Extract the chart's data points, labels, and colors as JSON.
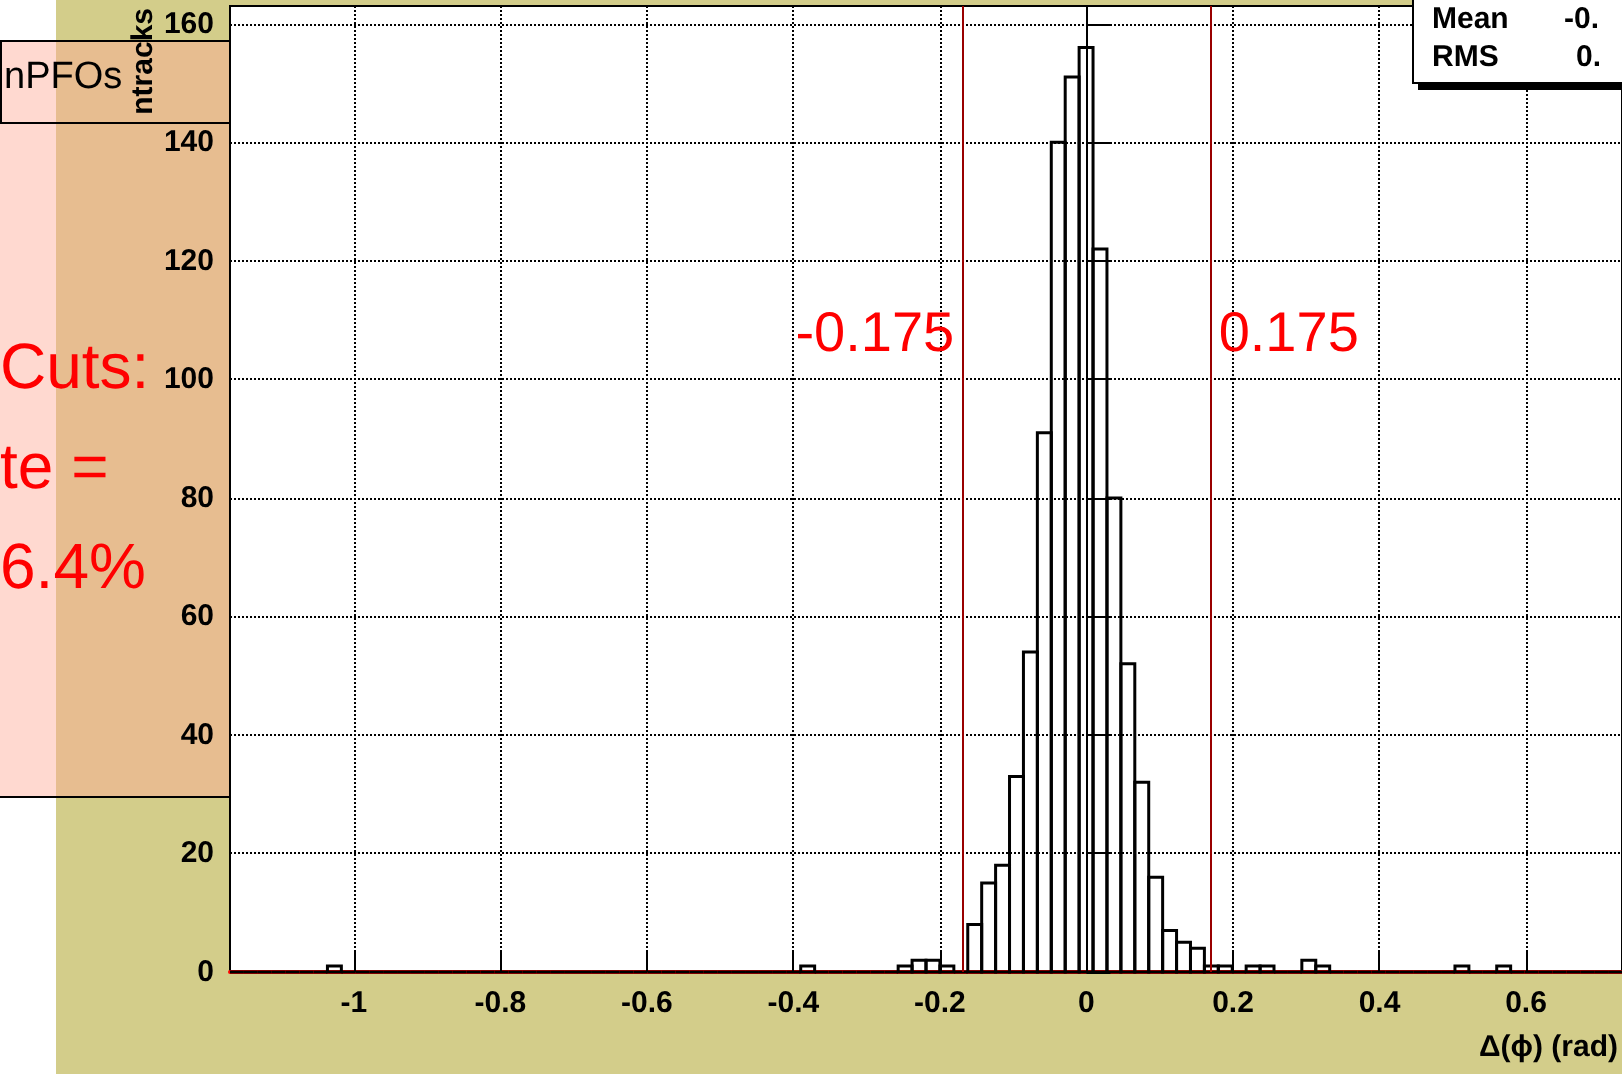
{
  "chart_data": {
    "type": "histogram",
    "xlabel": "Δ(ϕ) (rad)",
    "ylabel": "ntracks",
    "bins": [
      -1.169,
      -1.15,
      -1.131,
      -1.112,
      -1.093,
      -1.074,
      -1.055,
      -1.036,
      -1.017,
      -0.998,
      -0.979,
      -0.96,
      -0.941,
      -0.922,
      -0.903,
      -0.884,
      -0.865,
      -0.846,
      -0.827,
      -0.808,
      -0.789,
      -0.77,
      -0.751,
      -0.732,
      -0.713,
      -0.694,
      -0.675,
      -0.656,
      -0.637,
      -0.618,
      -0.599,
      -0.58,
      -0.561,
      -0.542,
      -0.523,
      -0.504,
      -0.485,
      -0.466,
      -0.447,
      -0.428,
      -0.409,
      -0.39,
      -0.371,
      -0.352,
      -0.333,
      -0.314,
      -0.295,
      -0.276,
      -0.257,
      -0.238,
      -0.219,
      -0.2,
      -0.181,
      -0.162,
      -0.143,
      -0.124,
      -0.105,
      -0.086,
      -0.067,
      -0.048,
      -0.029,
      -0.01,
      0.009,
      0.028,
      0.047,
      0.066,
      0.085,
      0.104,
      0.123,
      0.142,
      0.161,
      0.18,
      0.199,
      0.218,
      0.237,
      0.256,
      0.275,
      0.294,
      0.313,
      0.332,
      0.351,
      0.37,
      0.389,
      0.408,
      0.427,
      0.446,
      0.465,
      0.484,
      0.503,
      0.522,
      0.541,
      0.56,
      0.579,
      0.598,
      0.617,
      0.636,
      0.655,
      0.674,
      0.693,
      0.712,
      0.731
    ],
    "values": [
      0,
      0,
      0,
      0,
      0,
      0,
      0,
      1,
      0,
      0,
      0,
      0,
      0,
      0,
      0,
      0,
      0,
      0,
      0,
      0,
      0,
      0,
      0,
      0,
      0,
      0,
      0,
      0,
      0,
      0,
      0,
      0,
      0,
      0,
      0,
      0,
      0,
      0,
      0,
      0,
      0,
      1,
      0,
      0,
      0,
      0,
      0,
      0,
      1,
      2,
      2,
      1,
      0,
      8,
      15,
      18,
      33,
      54,
      91,
      140,
      151,
      156,
      122,
      80,
      52,
      32,
      16,
      7,
      5,
      4,
      1,
      1,
      0,
      1,
      1,
      0,
      0,
      2,
      1,
      0,
      0,
      0,
      0,
      0,
      0,
      0,
      0,
      0,
      1,
      0,
      0,
      1,
      0,
      0,
      0,
      0,
      0,
      0,
      0,
      0
    ],
    "color": "#000000",
    "xlim": [
      -1.169,
      0.731
    ],
    "xticks": [
      -1,
      -0.8,
      -0.6,
      -0.4,
      -0.2,
      0,
      0.2,
      0.4,
      0.6
    ],
    "ylim": [
      0,
      163
    ],
    "yticks": [
      0,
      20,
      40,
      60,
      80,
      100,
      120,
      140,
      160
    ],
    "grid": true,
    "ref_lines": [
      {
        "axis": "x",
        "value": -0.175,
        "label": "-0.175",
        "color": "#990000"
      },
      {
        "axis": "x",
        "value": 0.175,
        "label": "0.175",
        "color": "#990000"
      }
    ],
    "annotations": [
      "nPFOs",
      "Cuts:",
      "te =",
      "6.4%",
      "Mean",
      "-0.",
      "RMS",
      "0."
    ]
  }
}
